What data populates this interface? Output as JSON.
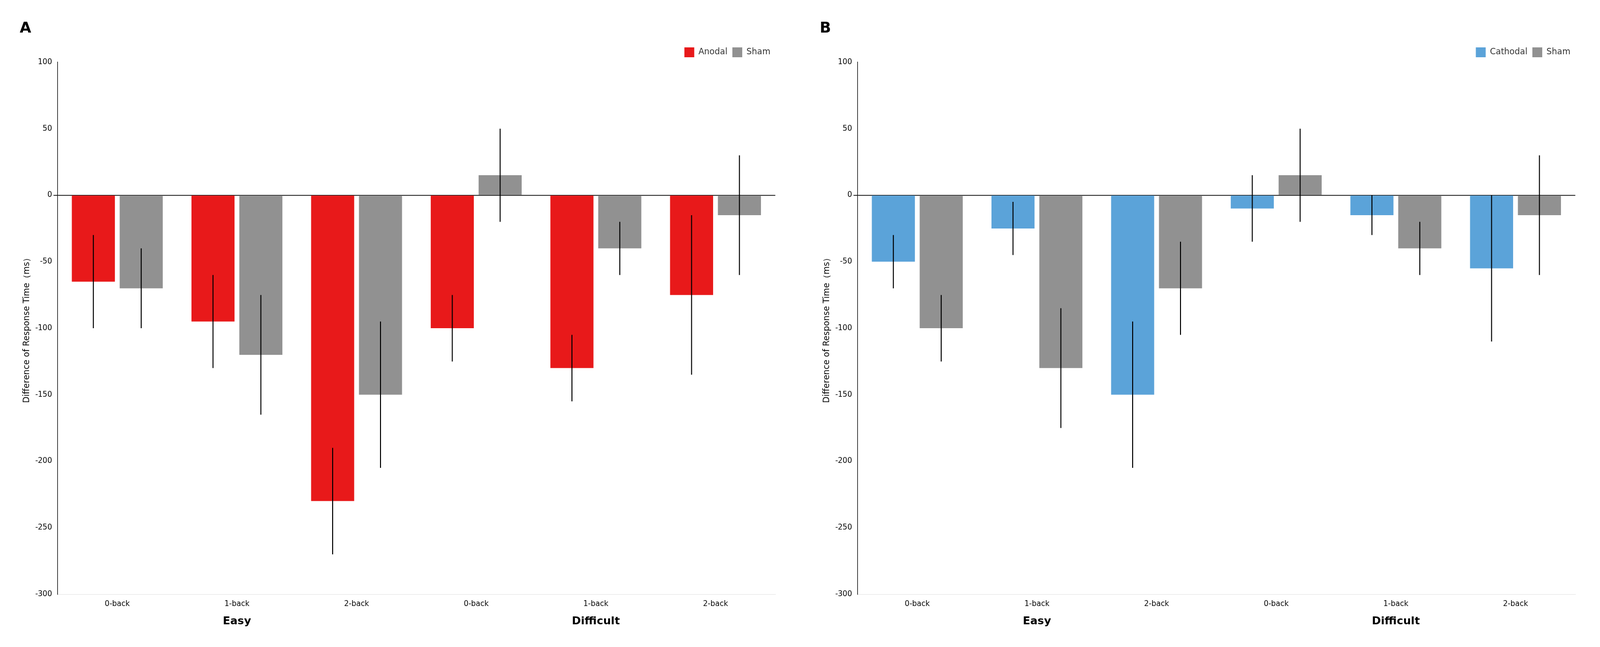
{
  "chart_data": [
    {
      "type": "bar",
      "title": "A",
      "ylabel": "Difference of Response Time（ms）",
      "categories": [
        "0-back",
        "1-back",
        "2-back",
        "0-back",
        "1-back",
        "2-back"
      ],
      "groups": [
        "Easy",
        "Easy",
        "Easy",
        "Difficult",
        "Difficult",
        "Difficult"
      ],
      "series": [
        {
          "name": "Anodal",
          "color": "#e8191a",
          "values": [
            -65,
            -95,
            -230,
            -100,
            -130,
            -75
          ],
          "errors": [
            35,
            35,
            40,
            25,
            25,
            60
          ]
        },
        {
          "name": "Sham",
          "color": "#919191",
          "values": [
            -70,
            -120,
            -150,
            15,
            -40,
            -15
          ],
          "errors": [
            30,
            45,
            55,
            35,
            20,
            45
          ]
        }
      ],
      "ylim": [
        -300,
        100
      ],
      "yticks": [
        100,
        50,
        0,
        -50,
        -100,
        -150,
        -200,
        -250,
        -300
      ],
      "grid": false,
      "legend": "upper right"
    },
    {
      "type": "bar",
      "title": "B",
      "ylabel": "Difference of Response Time（ms）",
      "categories": [
        "0-back",
        "1-back",
        "2-back",
        "0-back",
        "1-back",
        "2-back"
      ],
      "groups": [
        "Easy",
        "Easy",
        "Easy",
        "Difficult",
        "Difficult",
        "Difficult"
      ],
      "series": [
        {
          "name": "Cathodal",
          "color": "#5ba3d9",
          "values": [
            -50,
            -25,
            -150,
            -10,
            -15,
            -55
          ],
          "errors": [
            20,
            20,
            55,
            25,
            15,
            55
          ]
        },
        {
          "name": "Sham",
          "color": "#919191",
          "values": [
            -100,
            -130,
            -70,
            15,
            -40,
            -15
          ],
          "errors": [
            25,
            45,
            35,
            35,
            20,
            45
          ]
        }
      ],
      "ylim": [
        -300,
        100
      ],
      "yticks": [
        100,
        50,
        0,
        -50,
        -100,
        -150,
        -200,
        -250,
        -300
      ],
      "grid": false,
      "legend": "upper right"
    }
  ]
}
